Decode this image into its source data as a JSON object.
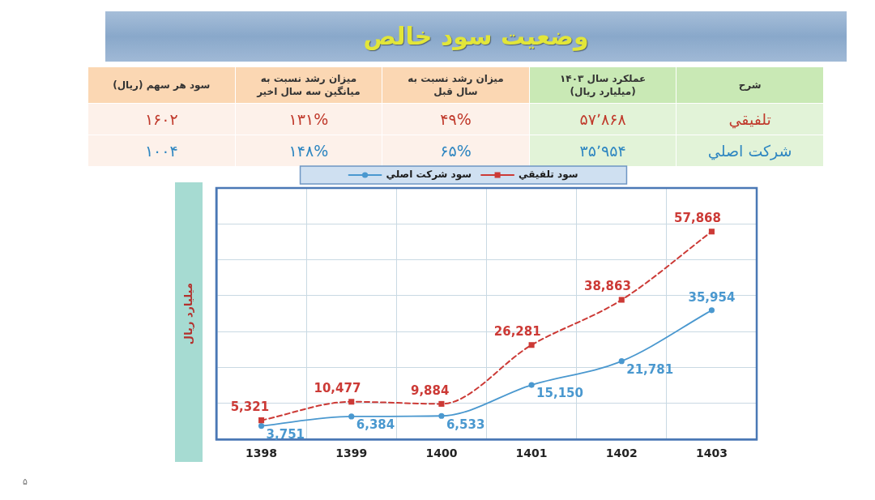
{
  "chart_data": [
    {
      "type": "other",
      "title": "وضعیت سود خالص",
      "ylabel": "شرح",
      "categories": [
        "سود هر سهم (ریال)",
        "میزان رشد نسبت به میانگین سه سال اخیر",
        "میزان رشد نسبت به سال قبل",
        "عملکرد سال ۱۴۰۳ (میلیارد ریال)"
      ],
      "y_categories": [
        "تلفیقي",
        "شرکت اصلي"
      ],
      "cell_labels": [
        [
          "۱۶۰۲",
          "۱۳۱%",
          "۴۹%",
          "۵۷٬۸۶۸"
        ],
        [
          "۱۰۰۴",
          "۱۴۸%",
          "۶۵%",
          "۳۵٬۹۵۴"
        ]
      ]
    },
    {
      "type": "line",
      "ylabel": "میلیارد ریال",
      "categories": [
        "1398",
        "1399",
        "1400",
        "1401",
        "1402",
        "1403"
      ],
      "series": [
        {
          "name": "سود تلفیقي",
          "color": "#cc3a36",
          "values": [
            5321,
            10477,
            9884,
            26281,
            38863,
            57868
          ],
          "value_labels": [
            "5,321",
            "10,477",
            "9,884",
            "26,281",
            "38,863",
            "57,868"
          ],
          "marker": "square",
          "line_style": "dashed"
        },
        {
          "name": "سود شرکت اصلي",
          "color": "#4a98cf",
          "values": [
            3751,
            6384,
            6533,
            15150,
            21781,
            35954
          ],
          "value_labels": [
            "3,751",
            "6,384",
            "6,533",
            "15,150",
            "21,781",
            "35,954"
          ],
          "marker": "circle",
          "line_style": "solid"
        }
      ],
      "grid": true,
      "legend": "top",
      "tick_labels": "x",
      "annotations": [
        "۵"
      ]
    }
  ]
}
